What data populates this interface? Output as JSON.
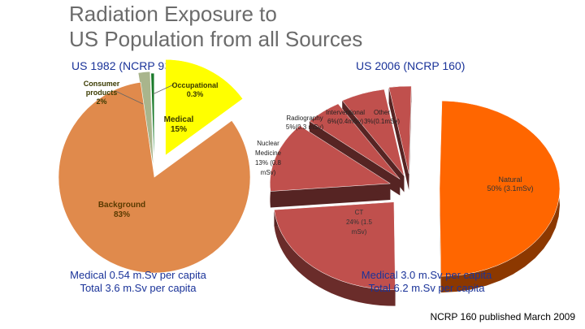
{
  "slide": {
    "title_line1": "Radiation Exposure to",
    "title_line2": "US Population from all Sources",
    "left_caption_line1": "Medical 0.54 m.Sv per capita",
    "left_caption_line2": "Total 3.6 m.Sv per capita",
    "right_caption_line1": "Medical 3.0 m.Sv per capita",
    "right_caption_line2": "Total 6.2 m.Sv per capita",
    "note": "NCRP 160 published March 2009"
  },
  "chart_data": [
    {
      "type": "pie",
      "title": "US 1982 (NCRP 93)",
      "slices": [
        {
          "label_lines": [
            "Background",
            "83%"
          ],
          "value": 83,
          "color": "#e08a4c"
        },
        {
          "label_lines": [
            "Consumer",
            "products",
            "2%"
          ],
          "value": 2,
          "color": "#a9b58c"
        },
        {
          "label_lines": [
            "Occupational",
            "0.3%"
          ],
          "value": 0.3,
          "color": "#1a7a2a"
        },
        {
          "label_lines": [
            "Medical",
            "15%"
          ],
          "value": 15,
          "color": "#ffff00"
        }
      ]
    },
    {
      "type": "pie",
      "title": "US 2006 (NCRP 160)",
      "slices": [
        {
          "label_lines": [
            "Natural",
            "50% (3.1mSv)"
          ],
          "value": 50,
          "color": "#ff6600"
        },
        {
          "label_lines": [
            "CT",
            "24% (1.5",
            "mSv)"
          ],
          "value": 24,
          "color": "#c0504d"
        },
        {
          "label_lines": [
            "Nuclear",
            "Medicine",
            "13% (0.8",
            "mSv)"
          ],
          "value": 13,
          "color": "#c0504d"
        },
        {
          "label_lines": [
            "Radiography",
            "5%(0.3 mSv)"
          ],
          "value": 5,
          "color": "#c0504d"
        },
        {
          "label_lines": [
            "Interventional",
            "6%(0.4mSv)"
          ],
          "value": 6,
          "color": "#c0504d"
        },
        {
          "label_lines": [
            "Other",
            "3%(0.1mSv)"
          ],
          "value": 3,
          "color": "#c0504d"
        }
      ]
    }
  ]
}
